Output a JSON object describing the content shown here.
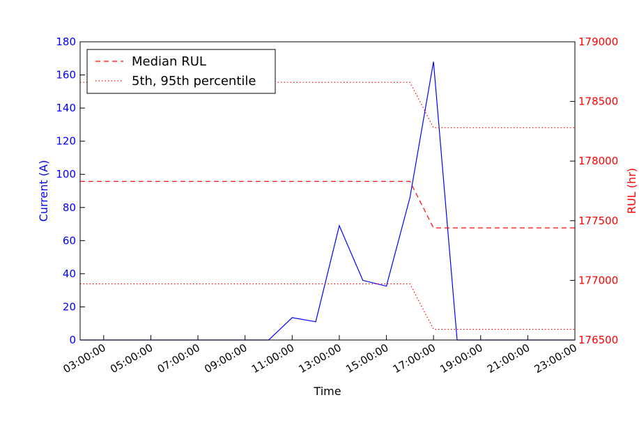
{
  "chart_data": {
    "type": "line",
    "xlabel": "Time",
    "ylabel_left": "Current (A)",
    "ylabel_right": "RUL (hr)",
    "x_range": [
      "02:00:00",
      "23:00:00"
    ],
    "x_ticks": [
      "03:00:00",
      "05:00:00",
      "07:00:00",
      "09:00:00",
      "11:00:00",
      "13:00:00",
      "15:00:00",
      "17:00:00",
      "19:00:00",
      "21:00:00",
      "23:00:00"
    ],
    "y_left": {
      "range": [
        0,
        180
      ],
      "ticks": [
        0,
        20,
        40,
        60,
        80,
        100,
        120,
        140,
        160,
        180
      ],
      "color": "#0000ff"
    },
    "y_right": {
      "range": [
        176500,
        179000
      ],
      "ticks": [
        176500,
        177000,
        177500,
        178000,
        178500,
        179000
      ],
      "color": "#ff0000"
    },
    "grid": false,
    "legend": {
      "placement": "top-left",
      "entries": [
        "Median RUL",
        "5th, 95th percentile"
      ]
    },
    "series": [
      {
        "axis": "left",
        "color": "#0000ff",
        "style": "solid",
        "x": [
          "02:00:00",
          "03:00:00",
          "04:00:00",
          "05:00:00",
          "06:00:00",
          "07:00:00",
          "08:00:00",
          "09:00:00",
          "10:00:00",
          "11:00:00",
          "12:00:00",
          "13:00:00",
          "14:00:00",
          "15:00:00",
          "16:00:00",
          "17:00:00",
          "18:00:00",
          "19:00:00",
          "20:00:00",
          "21:00:00",
          "22:00:00",
          "23:00:00"
        ],
        "values": [
          0,
          0,
          0,
          0,
          0,
          0,
          0,
          0,
          0,
          13.5,
          11,
          69,
          36,
          32.5,
          86,
          168,
          0,
          0,
          0,
          0,
          0,
          0
        ]
      },
      {
        "name": "Median RUL",
        "axis": "right",
        "color": "#ff0000",
        "style": "dashed",
        "x": [
          "02:00:00",
          "16:00:00",
          "17:00:00",
          "23:00:00"
        ],
        "values": [
          177830,
          177830,
          177440,
          177440
        ]
      },
      {
        "name": "5th, 95th percentile",
        "axis": "right",
        "color": "#ff0000",
        "style": "dotted",
        "x": [
          "02:00:00",
          "16:00:00",
          "17:00:00",
          "23:00:00"
        ],
        "values": [
          178660,
          178660,
          178280,
          178280
        ]
      },
      {
        "axis": "right",
        "color": "#ff0000",
        "style": "dotted",
        "x": [
          "02:00:00",
          "16:00:00",
          "17:00:00",
          "23:00:00"
        ],
        "values": [
          176970,
          176970,
          176590,
          176590
        ]
      }
    ]
  }
}
